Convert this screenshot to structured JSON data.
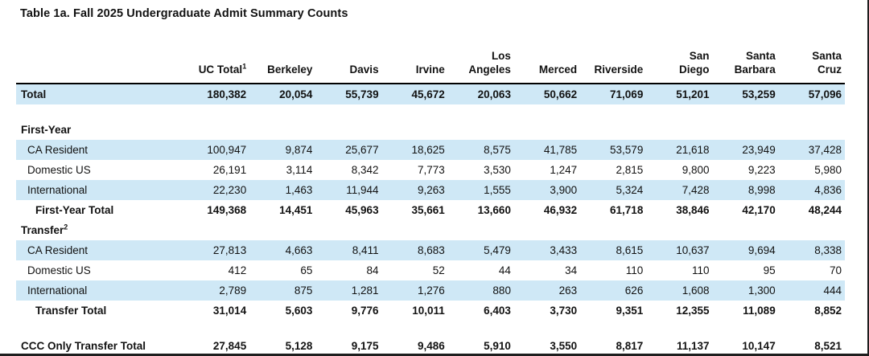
{
  "title": "Table 1a. Fall 2025 Undergraduate Admit Summary Counts",
  "colors": {
    "band": "#cfe8f6",
    "text": "#121212",
    "header_rule": "#000000",
    "page_border": "#1e1e1e"
  },
  "table": {
    "row_label_header": "",
    "columns": [
      {
        "lines": [
          "UC Total"
        ],
        "sup": "1"
      },
      {
        "lines": [
          "Berkeley"
        ]
      },
      {
        "lines": [
          "Davis"
        ]
      },
      {
        "lines": [
          "Irvine"
        ]
      },
      {
        "lines": [
          "Los",
          "Angeles"
        ]
      },
      {
        "lines": [
          "Merced"
        ]
      },
      {
        "lines": [
          "Riverside"
        ]
      },
      {
        "lines": [
          "San",
          "Diego"
        ]
      },
      {
        "lines": [
          "Santa",
          "Barbara"
        ]
      },
      {
        "lines": [
          "Santa",
          "Cruz"
        ]
      }
    ],
    "rows": [
      {
        "type": "total",
        "shaded": true,
        "bold": true,
        "label": "Total",
        "values": [
          "180,382",
          "20,054",
          "55,739",
          "45,672",
          "20,063",
          "50,662",
          "71,069",
          "51,201",
          "53,259",
          "57,096"
        ]
      },
      {
        "type": "spacer"
      },
      {
        "type": "section",
        "bold": true,
        "label": "First-Year",
        "values": []
      },
      {
        "type": "data",
        "shaded": true,
        "label": "CA Resident",
        "values": [
          "100,947",
          "9,874",
          "25,677",
          "18,625",
          "8,575",
          "41,785",
          "53,579",
          "21,618",
          "23,949",
          "37,428"
        ]
      },
      {
        "type": "data",
        "shaded": false,
        "label": "Domestic US",
        "values": [
          "26,191",
          "3,114",
          "8,342",
          "7,773",
          "3,530",
          "1,247",
          "2,815",
          "9,800",
          "9,223",
          "5,980"
        ]
      },
      {
        "type": "data",
        "shaded": true,
        "label": "International",
        "values": [
          "22,230",
          "1,463",
          "11,944",
          "9,263",
          "1,555",
          "3,900",
          "5,324",
          "7,428",
          "8,998",
          "4,836"
        ]
      },
      {
        "type": "subtotal",
        "bold": true,
        "label": "First-Year Total",
        "values": [
          "149,368",
          "14,451",
          "45,963",
          "35,661",
          "13,660",
          "46,932",
          "61,718",
          "38,846",
          "42,170",
          "48,244"
        ]
      },
      {
        "type": "section",
        "bold": true,
        "label": "Transfer",
        "sup": "2",
        "values": []
      },
      {
        "type": "data",
        "shaded": true,
        "label": "CA Resident",
        "values": [
          "27,813",
          "4,663",
          "8,411",
          "8,683",
          "5,479",
          "3,433",
          "8,615",
          "10,637",
          "9,694",
          "8,338"
        ]
      },
      {
        "type": "data",
        "shaded": false,
        "label": "Domestic US",
        "values": [
          "412",
          "65",
          "84",
          "52",
          "44",
          "34",
          "110",
          "110",
          "95",
          "70"
        ]
      },
      {
        "type": "data",
        "shaded": true,
        "label": "International",
        "values": [
          "2,789",
          "875",
          "1,281",
          "1,276",
          "880",
          "263",
          "626",
          "1,608",
          "1,300",
          "444"
        ]
      },
      {
        "type": "subtotal",
        "bold": true,
        "label": "Transfer Total",
        "values": [
          "31,014",
          "5,603",
          "9,776",
          "10,011",
          "6,403",
          "3,730",
          "9,351",
          "12,355",
          "11,089",
          "8,852"
        ]
      },
      {
        "type": "spacer"
      },
      {
        "type": "grand",
        "bold": true,
        "label": "CCC Only Transfer Total",
        "values": [
          "27,845",
          "5,128",
          "9,175",
          "9,486",
          "5,910",
          "3,550",
          "8,817",
          "11,137",
          "10,147",
          "8,521"
        ]
      }
    ]
  }
}
